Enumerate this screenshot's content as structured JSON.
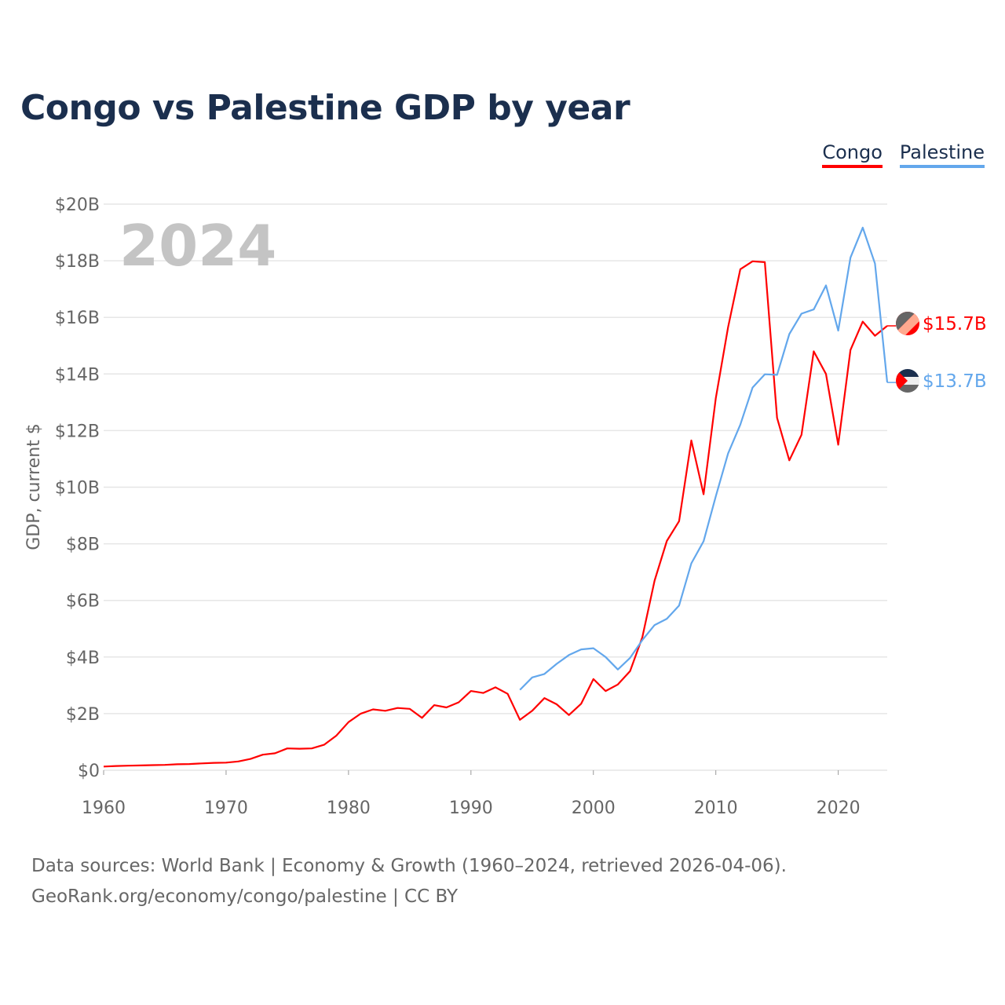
{
  "title": "Congo vs Palestine GDP by year",
  "legend": [
    {
      "name": "Congo",
      "color": "#ff0000"
    },
    {
      "name": "Palestine",
      "color": "#63a7ec"
    }
  ],
  "year_label": "2024",
  "end_labels": {
    "congo": "$15.7B",
    "palestine": "$13.7B"
  },
  "source_line1": "Data sources: World Bank | Economy & Growth (1960–2024, retrieved 2026-04-06).",
  "source_line2": "GeoRank.org/economy/congo/palestine | CC BY",
  "chart_data": {
    "type": "line",
    "title": "Congo vs Palestine GDP by year",
    "xlabel": "",
    "ylabel": "GDP, current $",
    "xlim": [
      1960,
      2024
    ],
    "ylim": [
      0,
      20
    ],
    "x_ticks": [
      1960,
      1970,
      1980,
      1990,
      2000,
      2010,
      2020
    ],
    "y_ticks": [
      0,
      2,
      4,
      6,
      8,
      10,
      12,
      14,
      16,
      18,
      20
    ],
    "y_tick_labels": [
      "$0",
      "$2B",
      "$4B",
      "$6B",
      "$8B",
      "$10B",
      "$12B",
      "$14B",
      "$16B",
      "$18B",
      "$20B"
    ],
    "grid": true,
    "legend_position": "top-right",
    "series": [
      {
        "name": "Congo",
        "color": "#ff0000",
        "start_year": 1960,
        "values": [
          0.13,
          0.15,
          0.16,
          0.17,
          0.18,
          0.19,
          0.21,
          0.22,
          0.24,
          0.26,
          0.27,
          0.31,
          0.4,
          0.55,
          0.6,
          0.77,
          0.76,
          0.77,
          0.9,
          1.22,
          1.7,
          2.0,
          2.15,
          2.1,
          2.2,
          2.17,
          1.85,
          2.3,
          2.22,
          2.4,
          2.8,
          2.73,
          2.93,
          2.7,
          1.78,
          2.1,
          2.55,
          2.33,
          1.95,
          2.35,
          3.22,
          2.8,
          3.03,
          3.5,
          4.7,
          6.7,
          8.1,
          8.8,
          11.65,
          9.75,
          13.15,
          15.65,
          17.7,
          17.98,
          17.95,
          12.45,
          10.95,
          11.85,
          14.8,
          14.0,
          11.5,
          14.85,
          15.85,
          15.35,
          15.7
        ]
      },
      {
        "name": "Palestine",
        "color": "#63a7ec",
        "start_year": 1994,
        "values": [
          2.84,
          3.28,
          3.4,
          3.76,
          4.07,
          4.27,
          4.31,
          4.0,
          3.56,
          3.97,
          4.6,
          5.13,
          5.35,
          5.82,
          7.31,
          8.09,
          9.68,
          11.19,
          12.21,
          13.52,
          13.99,
          13.97,
          15.41,
          16.13,
          16.28,
          17.13,
          15.53,
          18.11,
          19.17,
          17.9,
          13.7
        ]
      }
    ]
  }
}
